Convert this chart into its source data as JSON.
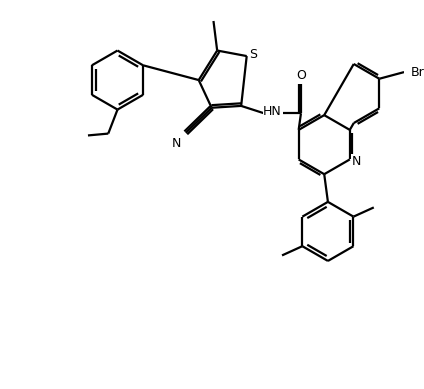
{
  "bg_color": "#ffffff",
  "line_color": "#000000",
  "lw": 1.6,
  "figsize": [
    4.24,
    3.89
  ],
  "dpi": 100,
  "xlim": [
    0,
    10.5
  ],
  "ylim": [
    -1,
    9.5
  ]
}
